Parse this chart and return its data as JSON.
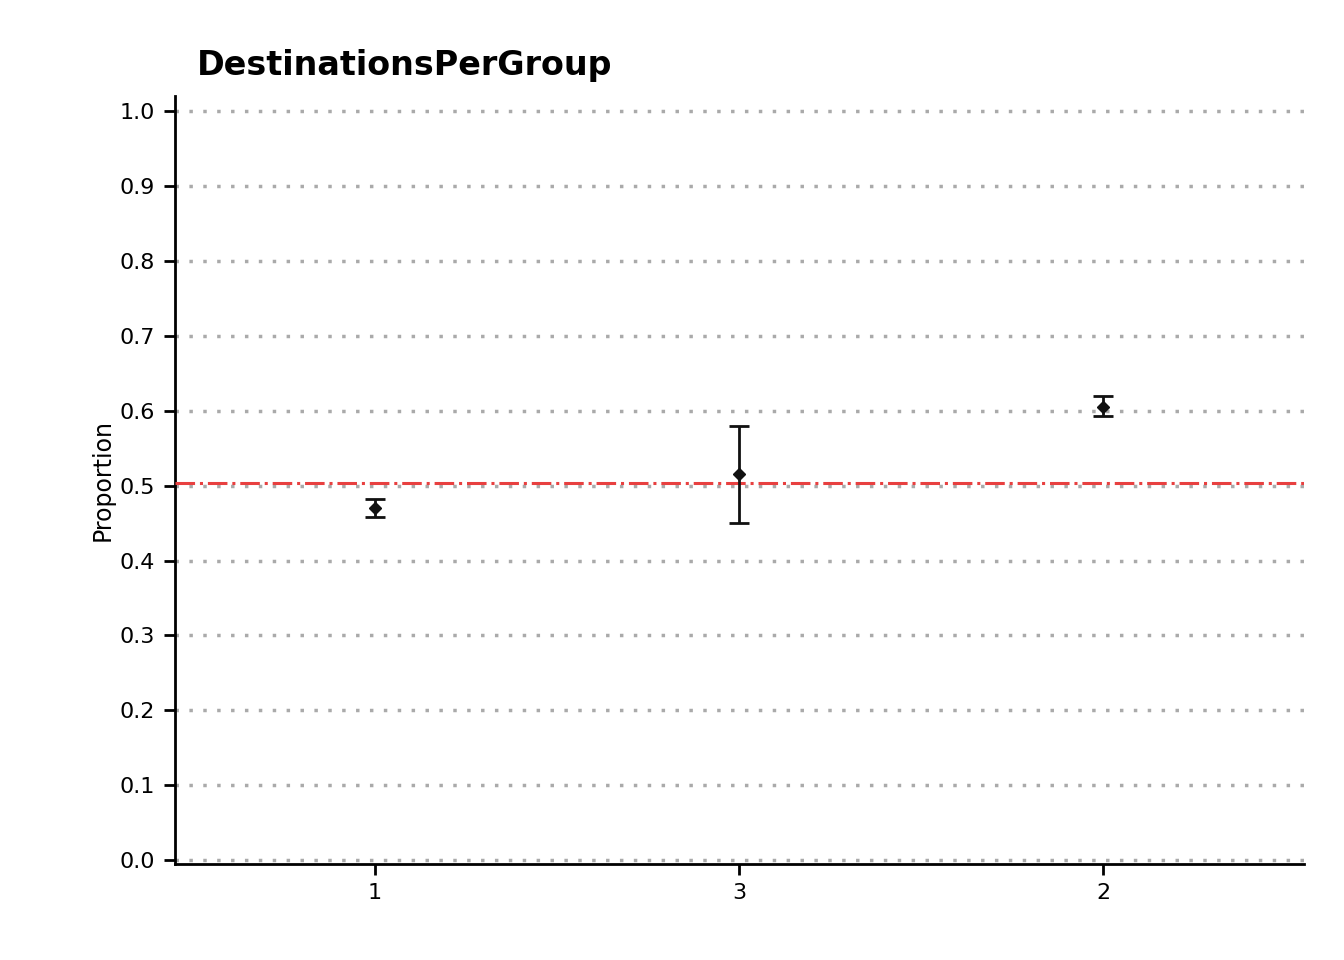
{
  "title": "DestinationsPerGroup",
  "ylabel": "Proportion",
  "xlabel": "",
  "avg_prob": 0.503,
  "avg_prob_color": "#e84040",
  "background_color": "#ffffff",
  "plot_bg_color": "#ffffff",
  "grid_color": "#aaaaaa",
  "point_color": "#111111",
  "x_positions": [
    0,
    1,
    2
  ],
  "x_labels": [
    "1",
    "3",
    "2"
  ],
  "proportions": [
    0.47,
    0.515,
    0.605
  ],
  "ci_lower": [
    0.458,
    0.45,
    0.593
  ],
  "ci_upper": [
    0.482,
    0.58,
    0.62
  ],
  "ylim": [
    0.0,
    1.0
  ],
  "yticks": [
    0.0,
    0.1,
    0.2,
    0.3,
    0.4,
    0.5,
    0.6,
    0.7,
    0.8,
    0.9,
    1.0
  ],
  "title_fontsize": 24,
  "label_fontsize": 17,
  "tick_fontsize": 16
}
